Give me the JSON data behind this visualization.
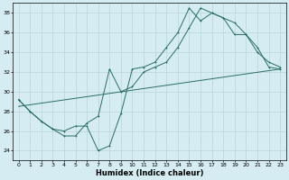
{
  "xlabel": "Humidex (Indice chaleur)",
  "bg_color": "#d4ecf2",
  "grid_color": "#b8d4dc",
  "line_color": "#2a6e62",
  "xlim": [
    -0.5,
    23.5
  ],
  "ylim": [
    23,
    39
  ],
  "xticks": [
    0,
    1,
    2,
    3,
    4,
    5,
    6,
    7,
    8,
    9,
    10,
    11,
    12,
    13,
    14,
    15,
    16,
    17,
    18,
    19,
    20,
    21,
    22,
    23
  ],
  "yticks": [
    24,
    26,
    28,
    30,
    32,
    34,
    36,
    38
  ],
  "series1_x": [
    0,
    1,
    2,
    3,
    4,
    5,
    6,
    7,
    8,
    9,
    10,
    11,
    12,
    13,
    14,
    15,
    16,
    17,
    18,
    19,
    20,
    21,
    22,
    23
  ],
  "series1_y": [
    29.2,
    28.0,
    27.0,
    26.2,
    26.0,
    26.5,
    26.5,
    24.0,
    24.5,
    27.8,
    32.3,
    32.5,
    33.0,
    34.5,
    36.0,
    38.5,
    37.2,
    38.0,
    37.5,
    35.8,
    35.8,
    34.0,
    33.0,
    32.5
  ],
  "series2_x": [
    0,
    1,
    2,
    3,
    4,
    5,
    6,
    7,
    8,
    9,
    10,
    11,
    12,
    13,
    14,
    15,
    16,
    17,
    18,
    19,
    20,
    21,
    22,
    23
  ],
  "series2_y": [
    29.2,
    28.0,
    27.0,
    26.2,
    25.5,
    25.5,
    26.8,
    27.5,
    32.3,
    30.0,
    30.5,
    32.0,
    32.5,
    33.0,
    34.5,
    36.5,
    38.5,
    38.0,
    37.5,
    37.0,
    35.8,
    34.5,
    32.5,
    32.3
  ],
  "series3_x": [
    0,
    23
  ],
  "series3_y": [
    28.5,
    32.3
  ]
}
